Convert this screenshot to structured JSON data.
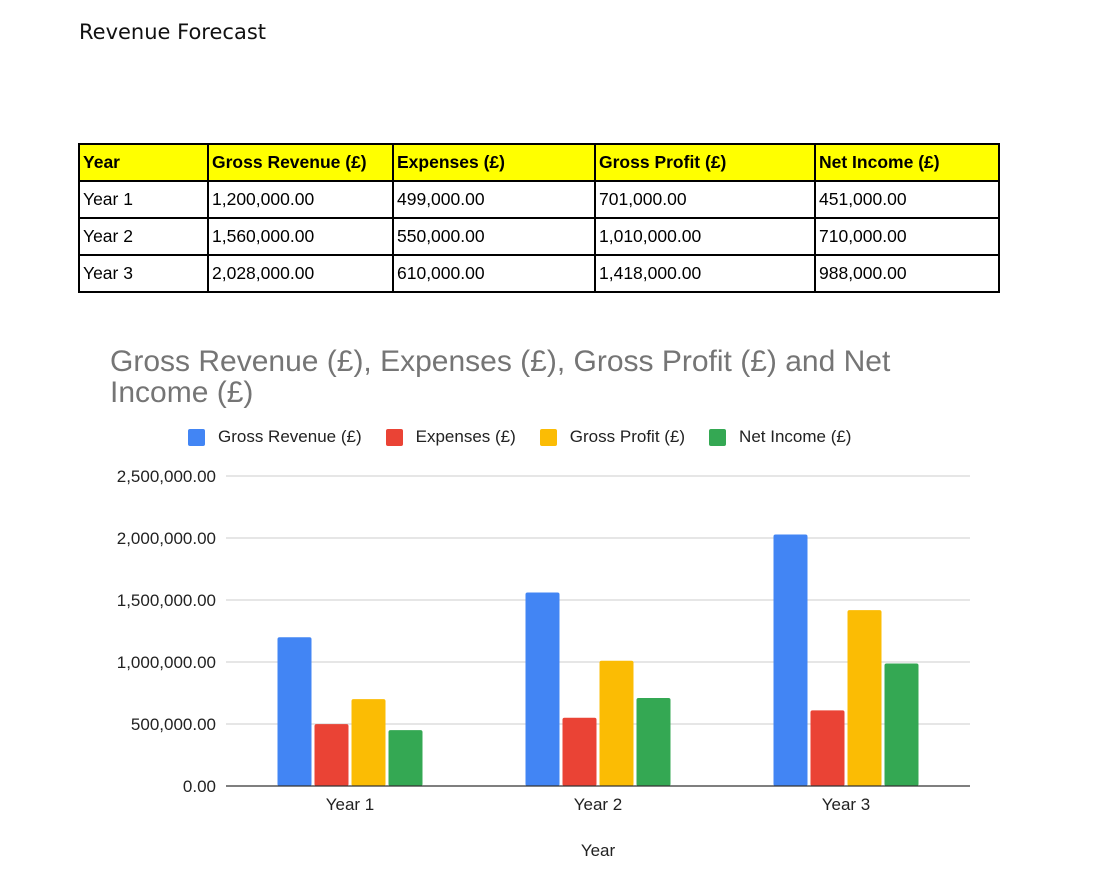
{
  "document": {
    "title": "Revenue Forecast"
  },
  "table": {
    "headers": [
      "Year",
      "Gross Revenue (£)",
      "Expenses (£)",
      "Gross Profit (£)",
      "Net Income (£)"
    ],
    "rows": [
      [
        "Year 1",
        "1,200,000.00",
        "499,000.00",
        "701,000.00",
        "451,000.00"
      ],
      [
        "Year 2",
        "1,560,000.00",
        "550,000.00",
        "1,010,000.00",
        "710,000.00"
      ],
      [
        "Year 3",
        "2,028,000.00",
        "610,000.00",
        "1,418,000.00",
        "988,000.00"
      ]
    ],
    "header_color": "#ffff00"
  },
  "chart_data": {
    "type": "bar",
    "title": "Gross Revenue (£), Expenses (£), Gross Profit (£) and Net Income (£)",
    "xlabel": "Year",
    "ylabel": "",
    "categories": [
      "Year 1",
      "Year 2",
      "Year 3"
    ],
    "series": [
      {
        "name": "Gross Revenue (£)",
        "values": [
          1200000,
          1560000,
          2028000
        ],
        "color": "#4285f4"
      },
      {
        "name": "Expenses (£)",
        "values": [
          499000,
          550000,
          610000
        ],
        "color": "#ea4335"
      },
      {
        "name": "Gross Profit (£)",
        "values": [
          701000,
          1010000,
          1418000
        ],
        "color": "#fbbc04"
      },
      {
        "name": "Net Income (£)",
        "values": [
          451000,
          710000,
          988000
        ],
        "color": "#34a853"
      }
    ],
    "ylim": [
      0,
      2500000
    ],
    "yticks": [
      0,
      500000,
      1000000,
      1500000,
      2000000,
      2500000
    ],
    "ytick_labels": [
      "0.00",
      "500,000.00",
      "1,000,000.00",
      "1,500,000.00",
      "2,000,000.00",
      "2,500,000.00"
    ],
    "grid": true,
    "legend_position": "top"
  }
}
